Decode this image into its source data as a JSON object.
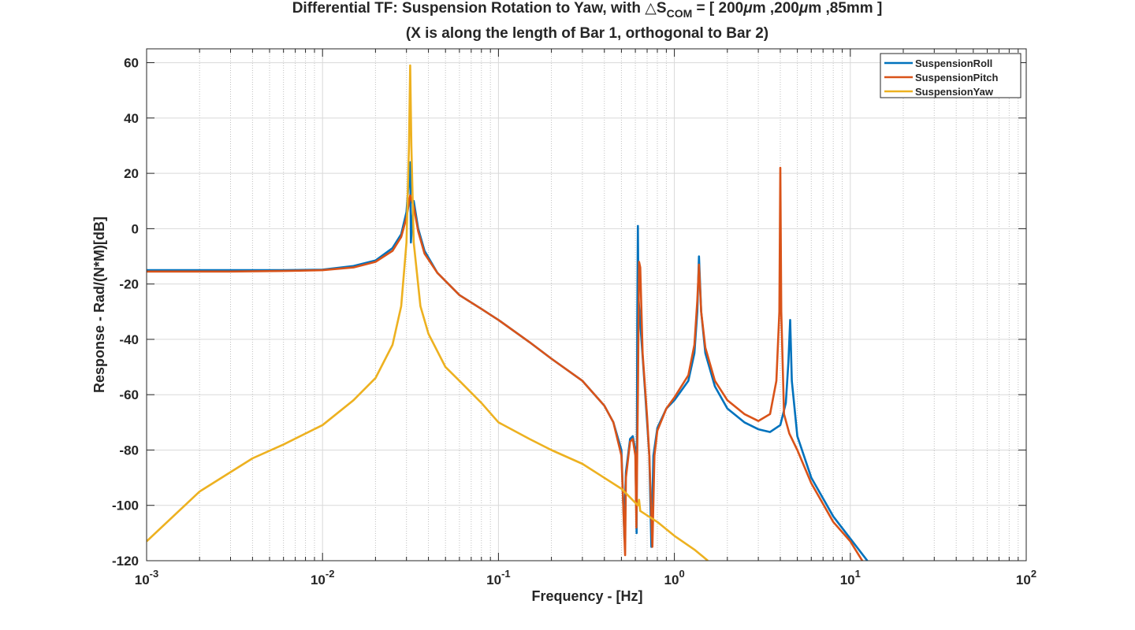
{
  "chart_data": {
    "type": "line",
    "title": {
      "line1_prefix": "Differential TF: Suspension Rotation to Yaw, with ",
      "delta": "△",
      "symbol": "S",
      "subscript": "COM",
      "line1_eq": " = [ 200",
      "mu1": "μ",
      "m1": "m ,200",
      "mu2": "μ",
      "m2": "m ,85mm ]",
      "line2": "(X is along the length of Bar 1, orthogonal to Bar 2)"
    },
    "xlabel": "Frequency - [Hz]",
    "ylabel": "Response - Rad/(N*M)[dB]",
    "x_scale": "log",
    "xlim": [
      0.001,
      100
    ],
    "ylim": [
      -120,
      65
    ],
    "grid": true,
    "legend_position": "top-right",
    "x_ticks": [
      {
        "base": "10",
        "exp": "-3"
      },
      {
        "base": "10",
        "exp": "-2"
      },
      {
        "base": "10",
        "exp": "-1"
      },
      {
        "base": "10",
        "exp": "0"
      },
      {
        "base": "10",
        "exp": "1"
      },
      {
        "base": "10",
        "exp": "2"
      }
    ],
    "y_ticks": [
      "-120",
      "-100",
      "-80",
      "-60",
      "-40",
      "-20",
      "0",
      "20",
      "40",
      "60"
    ],
    "series": [
      {
        "name": "SuspensionRoll",
        "color": "#0072bd",
        "points": [
          [
            0.001,
            -15
          ],
          [
            0.003,
            -15
          ],
          [
            0.006,
            -15
          ],
          [
            0.01,
            -14.8
          ],
          [
            0.015,
            -13.5
          ],
          [
            0.02,
            -11.5
          ],
          [
            0.025,
            -7
          ],
          [
            0.028,
            -2
          ],
          [
            0.03,
            6
          ],
          [
            0.0315,
            24
          ],
          [
            0.0318,
            -5
          ],
          [
            0.033,
            10
          ],
          [
            0.035,
            0
          ],
          [
            0.038,
            -8
          ],
          [
            0.045,
            -16
          ],
          [
            0.06,
            -24
          ],
          [
            0.08,
            -29
          ],
          [
            0.1,
            -33
          ],
          [
            0.15,
            -41
          ],
          [
            0.2,
            -47
          ],
          [
            0.3,
            -55
          ],
          [
            0.4,
            -64
          ],
          [
            0.45,
            -70
          ],
          [
            0.5,
            -80
          ],
          [
            0.52,
            -112
          ],
          [
            0.523,
            -100
          ],
          [
            0.53,
            -88
          ],
          [
            0.56,
            -76
          ],
          [
            0.58,
            -75
          ],
          [
            0.6,
            -80
          ],
          [
            0.61,
            -110
          ],
          [
            0.615,
            -35
          ],
          [
            0.62,
            1
          ],
          [
            0.625,
            -25
          ],
          [
            0.65,
            -40
          ],
          [
            0.68,
            -58
          ],
          [
            0.72,
            -82
          ],
          [
            0.74,
            -115
          ],
          [
            0.76,
            -82
          ],
          [
            0.8,
            -72
          ],
          [
            0.9,
            -65
          ],
          [
            1.0,
            -62
          ],
          [
            1.2,
            -55
          ],
          [
            1.3,
            -45
          ],
          [
            1.35,
            -30
          ],
          [
            1.38,
            -10
          ],
          [
            1.42,
            -30
          ],
          [
            1.5,
            -45
          ],
          [
            1.7,
            -57
          ],
          [
            2.0,
            -65
          ],
          [
            2.5,
            -70
          ],
          [
            3.0,
            -72.5
          ],
          [
            3.5,
            -73.5
          ],
          [
            4.0,
            -71
          ],
          [
            4.3,
            -63
          ],
          [
            4.45,
            -48
          ],
          [
            4.55,
            -33
          ],
          [
            4.65,
            -55
          ],
          [
            5.0,
            -75
          ],
          [
            6.0,
            -90
          ],
          [
            8.0,
            -104
          ],
          [
            10.0,
            -112
          ],
          [
            12.5,
            -120
          ]
        ]
      },
      {
        "name": "SuspensionPitch",
        "color": "#d95319",
        "points": [
          [
            0.001,
            -15.5
          ],
          [
            0.003,
            -15.5
          ],
          [
            0.006,
            -15.3
          ],
          [
            0.01,
            -15
          ],
          [
            0.015,
            -14
          ],
          [
            0.02,
            -12
          ],
          [
            0.025,
            -8
          ],
          [
            0.028,
            -3
          ],
          [
            0.03,
            4
          ],
          [
            0.0315,
            12
          ],
          [
            0.033,
            8
          ],
          [
            0.035,
            -1
          ],
          [
            0.038,
            -9
          ],
          [
            0.045,
            -16
          ],
          [
            0.06,
            -24
          ],
          [
            0.08,
            -29
          ],
          [
            0.1,
            -33
          ],
          [
            0.15,
            -41
          ],
          [
            0.2,
            -47
          ],
          [
            0.3,
            -55
          ],
          [
            0.4,
            -64
          ],
          [
            0.45,
            -70
          ],
          [
            0.5,
            -82
          ],
          [
            0.525,
            -118
          ],
          [
            0.53,
            -90
          ],
          [
            0.56,
            -77
          ],
          [
            0.58,
            -76
          ],
          [
            0.6,
            -82
          ],
          [
            0.608,
            -108
          ],
          [
            0.62,
            -60
          ],
          [
            0.63,
            -12
          ],
          [
            0.64,
            -14
          ],
          [
            0.66,
            -45
          ],
          [
            0.7,
            -68
          ],
          [
            0.72,
            -82
          ],
          [
            0.75,
            -115
          ],
          [
            0.77,
            -82
          ],
          [
            0.8,
            -73
          ],
          [
            0.9,
            -65
          ],
          [
            1.0,
            -61
          ],
          [
            1.2,
            -53
          ],
          [
            1.3,
            -42
          ],
          [
            1.35,
            -26
          ],
          [
            1.38,
            -13
          ],
          [
            1.42,
            -30
          ],
          [
            1.5,
            -43
          ],
          [
            1.7,
            -55
          ],
          [
            2.0,
            -62
          ],
          [
            2.5,
            -67
          ],
          [
            3.0,
            -69.5
          ],
          [
            3.5,
            -67
          ],
          [
            3.8,
            -55
          ],
          [
            3.95,
            -30
          ],
          [
            4.0,
            22
          ],
          [
            4.05,
            -30
          ],
          [
            4.2,
            -67
          ],
          [
            4.5,
            -74
          ],
          [
            5.0,
            -80
          ],
          [
            6.0,
            -92
          ],
          [
            8.0,
            -106
          ],
          [
            10.0,
            -113
          ],
          [
            11.7,
            -120
          ]
        ]
      },
      {
        "name": "SuspensionYaw",
        "color": "#edb120",
        "points": [
          [
            0.001,
            -113
          ],
          [
            0.002,
            -95
          ],
          [
            0.004,
            -83
          ],
          [
            0.006,
            -78
          ],
          [
            0.01,
            -71
          ],
          [
            0.015,
            -62
          ],
          [
            0.02,
            -54
          ],
          [
            0.025,
            -42
          ],
          [
            0.028,
            -28
          ],
          [
            0.03,
            -5
          ],
          [
            0.031,
            30
          ],
          [
            0.0315,
            59
          ],
          [
            0.032,
            30
          ],
          [
            0.033,
            -5
          ],
          [
            0.036,
            -28
          ],
          [
            0.04,
            -38
          ],
          [
            0.05,
            -50
          ],
          [
            0.06,
            -55
          ],
          [
            0.08,
            -63
          ],
          [
            0.1,
            -70
          ],
          [
            0.15,
            -76
          ],
          [
            0.2,
            -80
          ],
          [
            0.3,
            -85
          ],
          [
            0.5,
            -94
          ],
          [
            0.62,
            -100
          ],
          [
            0.63,
            -98
          ],
          [
            0.64,
            -102
          ],
          [
            0.8,
            -106
          ],
          [
            1.0,
            -111
          ],
          [
            1.3,
            -116
          ],
          [
            1.55,
            -120
          ]
        ]
      }
    ]
  }
}
